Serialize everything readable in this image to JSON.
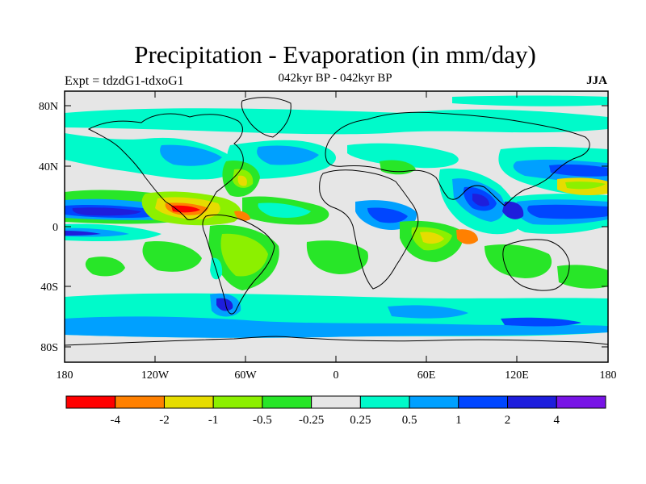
{
  "title": "Precipitation - Evaporation (in mm/day)",
  "experiment": "Expt = tdzdG1-tdxoG1",
  "period": "042kyr BP - 042kyr BP",
  "season": "JJA",
  "lat_labels": [
    "80N",
    "40N",
    "0",
    "40S",
    "80S"
  ],
  "lon_labels": [
    "180",
    "120W",
    "60W",
    "0",
    "60E",
    "120E",
    "180"
  ],
  "colorbar": {
    "colors": [
      "#ff0000",
      "#ff8000",
      "#e6dc00",
      "#8cf000",
      "#28e628",
      "#e6e6e6",
      "#00faca",
      "#00a0ff",
      "#0046ff",
      "#1e1edc",
      "#7814e6"
    ],
    "labels": [
      "-4",
      "-2",
      "-1",
      "-0.5",
      "-0.25",
      "0.25",
      "0.5",
      "1",
      "2",
      "4"
    ]
  },
  "colors": {
    "background": "#e6e6e6",
    "coastline": "#000000"
  }
}
